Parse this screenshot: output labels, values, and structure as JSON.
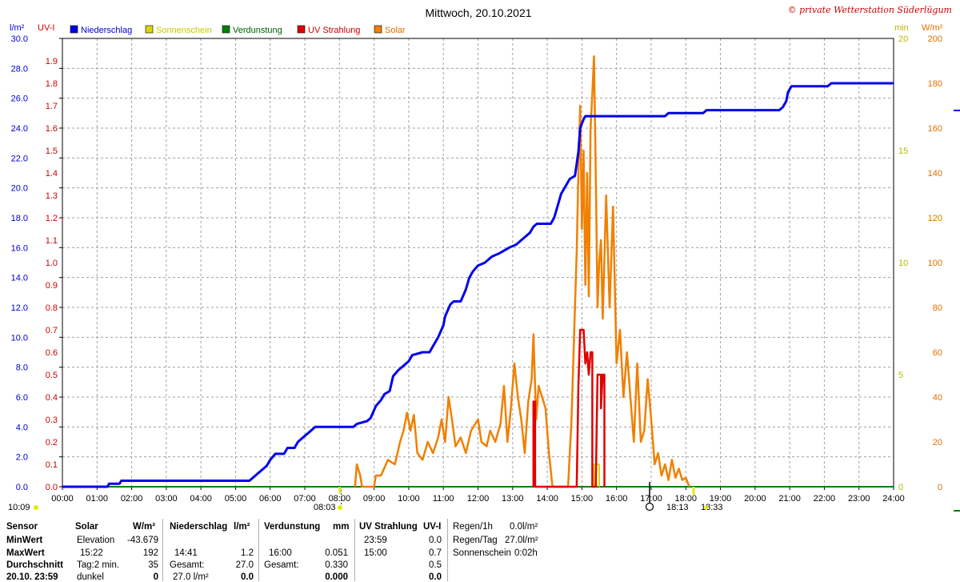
{
  "title": "Mittwoch, 20.10.2021",
  "copyright": "© private Wetterstation Süderlügum",
  "left_axis_labels": {
    "rain_unit": "l/m²",
    "uv_unit": "UV-I"
  },
  "right_axis_labels": {
    "min_unit": "min",
    "solar_unit": "W/m²"
  },
  "sun_times": {
    "sunrise": "08:03",
    "sunset": "18:13",
    "sunset2": "18:33",
    "left_time": "10:09"
  },
  "colors": {
    "rain": "#0000ee",
    "sunshine": "#d8d800",
    "evap": "#008000",
    "uv": "#e00000",
    "solar": "#f08000",
    "grid": "#999999"
  },
  "chart_data": {
    "type": "line",
    "legend": [
      {
        "name": "Niederschlag",
        "color": "#0000ee"
      },
      {
        "name": "Sonnenschein",
        "color": "#d8d800"
      },
      {
        "name": "Verdunstung",
        "color": "#008000"
      },
      {
        "name": "UV Strahlung",
        "color": "#e00000"
      },
      {
        "name": "Solar",
        "color": "#f08000"
      }
    ],
    "x_ticks": [
      "00:00",
      "01:00",
      "02:00",
      "03:00",
      "04:00",
      "05:00",
      "06:00",
      "07:00",
      "08:00",
      "09:00",
      "10:00",
      "11:00",
      "12:00",
      "13:00",
      "14:00",
      "15:00",
      "16:00",
      "17:00",
      "18:00",
      "19:00",
      "20:00",
      "21:00",
      "22:00",
      "23:00",
      "24:00"
    ],
    "xlim_hours": [
      0,
      24
    ],
    "rain_ticks": [
      "0.0",
      "2.0",
      "4.0",
      "6.0",
      "8.0",
      "10.0",
      "12.0",
      "14.0",
      "16.0",
      "18.0",
      "20.0",
      "22.0",
      "24.0",
      "26.0",
      "28.0",
      "30.0"
    ],
    "rain_ylim": [
      0,
      30
    ],
    "uv_ticks": [
      "0.0",
      "0.1",
      "0.2",
      "0.3",
      "0.4",
      "0.5",
      "0.6",
      "0.7",
      "0.8",
      "0.9",
      "1.0",
      "1.1",
      "1.2",
      "1.3",
      "1.4",
      "1.5",
      "1.6",
      "1.7",
      "1.8",
      "1.9"
    ],
    "uv_ylim": [
      0,
      2.0
    ],
    "min_ticks": [
      "0",
      "5",
      "10",
      "15",
      "20"
    ],
    "min_ylim": [
      0,
      20
    ],
    "solar_ticks": [
      "0",
      "20",
      "40",
      "60",
      "80",
      "100",
      "120",
      "140",
      "160",
      "180",
      "200"
    ],
    "solar_ylim": [
      0,
      200
    ],
    "niederschlag": [
      [
        0,
        0
      ],
      [
        1.3,
        0
      ],
      [
        1.35,
        0.2
      ],
      [
        1.65,
        0.2
      ],
      [
        1.7,
        0.4
      ],
      [
        5.4,
        0.4
      ],
      [
        5.5,
        0.6
      ],
      [
        5.7,
        1.0
      ],
      [
        5.9,
        1.4
      ],
      [
        6.0,
        1.8
      ],
      [
        6.15,
        2.2
      ],
      [
        6.4,
        2.2
      ],
      [
        6.5,
        2.6
      ],
      [
        6.7,
        2.6
      ],
      [
        6.8,
        3.0
      ],
      [
        7.0,
        3.4
      ],
      [
        7.1,
        3.6
      ],
      [
        7.2,
        3.8
      ],
      [
        7.3,
        4.0
      ],
      [
        8.4,
        4.0
      ],
      [
        8.5,
        4.2
      ],
      [
        8.8,
        4.4
      ],
      [
        8.9,
        4.6
      ],
      [
        9.05,
        5.4
      ],
      [
        9.2,
        5.8
      ],
      [
        9.3,
        6.2
      ],
      [
        9.45,
        6.4
      ],
      [
        9.55,
        7.4
      ],
      [
        9.7,
        7.8
      ],
      [
        9.8,
        8.0
      ],
      [
        10.0,
        8.4
      ],
      [
        10.1,
        8.8
      ],
      [
        10.4,
        9.0
      ],
      [
        10.6,
        9.0
      ],
      [
        10.7,
        9.4
      ],
      [
        10.85,
        10.0
      ],
      [
        11.0,
        10.8
      ],
      [
        11.05,
        11.4
      ],
      [
        11.2,
        12.2
      ],
      [
        11.3,
        12.4
      ],
      [
        11.5,
        12.4
      ],
      [
        11.65,
        13.2
      ],
      [
        11.75,
        14.0
      ],
      [
        11.85,
        14.4
      ],
      [
        12.0,
        14.8
      ],
      [
        12.2,
        15.0
      ],
      [
        12.4,
        15.4
      ],
      [
        12.6,
        15.6
      ],
      [
        12.9,
        16.0
      ],
      [
        13.1,
        16.2
      ],
      [
        13.3,
        16.6
      ],
      [
        13.5,
        17.0
      ],
      [
        13.6,
        17.4
      ],
      [
        13.7,
        17.6
      ],
      [
        14.1,
        17.6
      ],
      [
        14.2,
        18.0
      ],
      [
        14.3,
        18.8
      ],
      [
        14.4,
        19.6
      ],
      [
        14.5,
        20.0
      ],
      [
        14.65,
        20.6
      ],
      [
        14.8,
        20.8
      ],
      [
        14.9,
        22.4
      ],
      [
        14.95,
        24.0
      ],
      [
        15.05,
        24.6
      ],
      [
        15.1,
        24.8
      ],
      [
        17.4,
        24.8
      ],
      [
        17.5,
        25.0
      ],
      [
        18.5,
        25.0
      ],
      [
        18.6,
        25.2
      ],
      [
        20.7,
        25.2
      ],
      [
        20.8,
        25.4
      ],
      [
        20.9,
        25.8
      ],
      [
        20.95,
        26.4
      ],
      [
        21.05,
        26.8
      ],
      [
        21.1,
        26.8
      ],
      [
        22.1,
        26.8
      ],
      [
        22.2,
        27.0
      ],
      [
        24.0,
        27.0
      ]
    ],
    "uv_strahlung": [
      [
        13.6,
        0
      ],
      [
        13.6,
        0.38
      ],
      [
        13.65,
        0.38
      ],
      [
        13.65,
        0
      ],
      [
        14.85,
        0
      ],
      [
        14.9,
        0.45
      ],
      [
        14.95,
        0.7
      ],
      [
        15.05,
        0.7
      ],
      [
        15.1,
        0.55
      ],
      [
        15.15,
        0.6
      ],
      [
        15.2,
        0.5
      ],
      [
        15.25,
        0.6
      ],
      [
        15.3,
        0.6
      ],
      [
        15.3,
        0
      ],
      [
        15.4,
        0
      ],
      [
        15.45,
        0.5
      ],
      [
        15.55,
        0.5
      ],
      [
        15.55,
        0.35
      ],
      [
        15.6,
        0.5
      ],
      [
        15.65,
        0.5
      ],
      [
        15.65,
        0
      ]
    ],
    "solar": [
      [
        8.45,
        0
      ],
      [
        8.5,
        10
      ],
      [
        8.6,
        5
      ],
      [
        8.65,
        0
      ],
      [
        9.0,
        0
      ],
      [
        9.05,
        5
      ],
      [
        9.2,
        5
      ],
      [
        9.4,
        12
      ],
      [
        9.6,
        10
      ],
      [
        9.75,
        20
      ],
      [
        9.85,
        25
      ],
      [
        9.95,
        33
      ],
      [
        10.05,
        25
      ],
      [
        10.15,
        32
      ],
      [
        10.25,
        15
      ],
      [
        10.4,
        12
      ],
      [
        10.55,
        20
      ],
      [
        10.7,
        15
      ],
      [
        10.85,
        22
      ],
      [
        10.95,
        30
      ],
      [
        11.05,
        20
      ],
      [
        11.15,
        40
      ],
      [
        11.25,
        30
      ],
      [
        11.35,
        18
      ],
      [
        11.5,
        22
      ],
      [
        11.65,
        15
      ],
      [
        11.8,
        25
      ],
      [
        12.0,
        30
      ],
      [
        12.1,
        20
      ],
      [
        12.25,
        18
      ],
      [
        12.35,
        25
      ],
      [
        12.5,
        20
      ],
      [
        12.65,
        28
      ],
      [
        12.75,
        45
      ],
      [
        12.85,
        20
      ],
      [
        12.95,
        35
      ],
      [
        13.05,
        55
      ],
      [
        13.15,
        40
      ],
      [
        13.25,
        30
      ],
      [
        13.35,
        15
      ],
      [
        13.45,
        38
      ],
      [
        13.55,
        48
      ],
      [
        13.6,
        68
      ],
      [
        13.68,
        30
      ],
      [
        13.75,
        45
      ],
      [
        13.85,
        40
      ],
      [
        13.95,
        35
      ],
      [
        14.05,
        15
      ],
      [
        14.15,
        0
      ],
      [
        14.3,
        0
      ],
      [
        14.6,
        0
      ],
      [
        14.7,
        30
      ],
      [
        14.8,
        80
      ],
      [
        14.85,
        105
      ],
      [
        14.9,
        140
      ],
      [
        14.95,
        170
      ],
      [
        15.0,
        115
      ],
      [
        15.05,
        150
      ],
      [
        15.1,
        90
      ],
      [
        15.15,
        140
      ],
      [
        15.2,
        85
      ],
      [
        15.25,
        160
      ],
      [
        15.3,
        175
      ],
      [
        15.35,
        192
      ],
      [
        15.4,
        140
      ],
      [
        15.45,
        80
      ],
      [
        15.5,
        100
      ],
      [
        15.55,
        110
      ],
      [
        15.6,
        75
      ],
      [
        15.7,
        130
      ],
      [
        15.8,
        80
      ],
      [
        15.9,
        125
      ],
      [
        16.0,
        55
      ],
      [
        16.1,
        70
      ],
      [
        16.2,
        40
      ],
      [
        16.3,
        60
      ],
      [
        16.4,
        40
      ],
      [
        16.5,
        20
      ],
      [
        16.6,
        55
      ],
      [
        16.7,
        20
      ],
      [
        16.8,
        25
      ],
      [
        16.9,
        48
      ],
      [
        17.0,
        30
      ],
      [
        17.1,
        10
      ],
      [
        17.2,
        15
      ],
      [
        17.3,
        5
      ],
      [
        17.4,
        10
      ],
      [
        17.5,
        3
      ],
      [
        17.6,
        12
      ],
      [
        17.7,
        4
      ],
      [
        17.8,
        8
      ],
      [
        17.9,
        3
      ],
      [
        18.0,
        4
      ],
      [
        18.1,
        0
      ]
    ],
    "sonnenschein": [
      [
        15.35,
        0
      ],
      [
        15.35,
        1
      ],
      [
        15.5,
        1
      ],
      [
        15.5,
        0
      ]
    ],
    "verdunstung": [
      [
        0,
        0
      ],
      [
        24,
        0
      ]
    ]
  },
  "table": {
    "sensor_col": {
      "header": "Sensor",
      "minwert": "MinWert",
      "maxwert": "MaxWert",
      "durchschnitt": "Durchschnitt",
      "date": "20.10. 23:59"
    },
    "solar_col": {
      "header": "Solar",
      "unit": "W/m²",
      "r1_label": "Elevation",
      "r1_val": "-43.679",
      "r2_label": "15:22",
      "r2_val": "192",
      "r3_label": "Tag:2 min.",
      "r3_val": "35",
      "r4_label": "dunkel",
      "r4_val": "0"
    },
    "rain_col": {
      "header": "Niederschlag",
      "unit": "l/m²",
      "r2_label": "14:41",
      "r2_val": "1.2",
      "r3_label": "Gesamt:",
      "r3_val": "27.0",
      "r4_label": "27.0 l/m²",
      "r4_val": "0.0"
    },
    "evap_col": {
      "header": "Verdunstung",
      "unit": "mm",
      "r2_label": "16:00",
      "r2_val": "0.051",
      "r3_label": "Gesamt:",
      "r3_val": "0.330",
      "r4_val": "0.000"
    },
    "uv_col": {
      "header": "UV Strahlung",
      "unit": "UV-I",
      "r1_label": "23:59",
      "r1_val": "0.0",
      "r2_label": "15:00",
      "r2_val": "0.7",
      "r3_val": "0.5",
      "r4_val": "0.0"
    },
    "extra_col": {
      "r0_label": "Regen/1h",
      "r0_val": "0.0l/m²",
      "r1_label": "Regen/Tag",
      "r1_val": "27.0l/m²",
      "r2_label": "Sonnenschein",
      "r2_val": "0:02h"
    }
  }
}
